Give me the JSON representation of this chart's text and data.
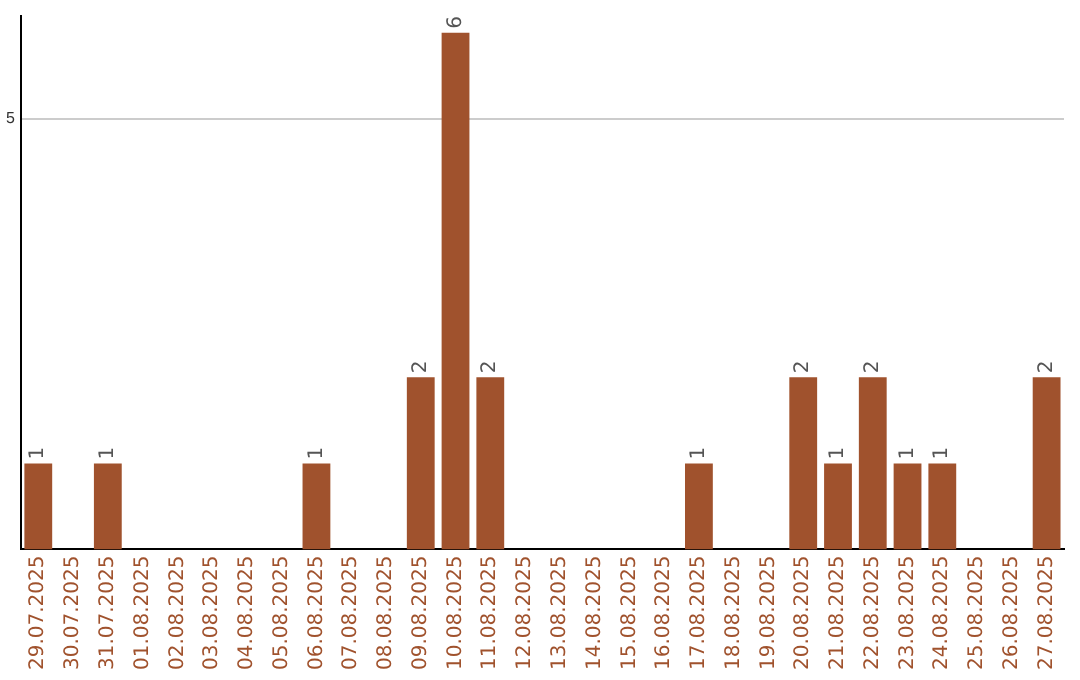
{
  "chart_data": {
    "type": "bar",
    "categories": [
      "29.07.2025",
      "30.07.2025",
      "31.07.2025",
      "01.08.2025",
      "02.08.2025",
      "03.08.2025",
      "04.08.2025",
      "05.08.2025",
      "06.08.2025",
      "07.08.2025",
      "08.08.2025",
      "09.08.2025",
      "10.08.2025",
      "11.08.2025",
      "12.08.2025",
      "13.08.2025",
      "14.08.2025",
      "15.08.2025",
      "16.08.2025",
      "17.08.2025",
      "18.08.2025",
      "19.08.2025",
      "20.08.2025",
      "21.08.2025",
      "22.08.2025",
      "23.08.2025",
      "24.08.2025",
      "25.08.2025",
      "26.08.2025",
      "27.08.2025"
    ],
    "values": [
      1,
      0,
      1,
      0,
      0,
      0,
      0,
      0,
      1,
      0,
      0,
      2,
      6,
      2,
      0,
      0,
      0,
      0,
      0,
      1,
      0,
      0,
      2,
      1,
      2,
      1,
      1,
      0,
      0,
      2
    ],
    "value_labels": [
      "1",
      null,
      "1",
      null,
      null,
      null,
      null,
      null,
      "1",
      null,
      null,
      "2",
      "6",
      "2",
      null,
      null,
      null,
      null,
      null,
      "1",
      null,
      null,
      "2",
      "1",
      "2",
      "1",
      "1",
      null,
      null,
      "2"
    ],
    "color": "#a0522d",
    "ylim": [
      0,
      6.2
    ],
    "yticks": [
      5
    ],
    "grid": "y",
    "legend": false
  }
}
